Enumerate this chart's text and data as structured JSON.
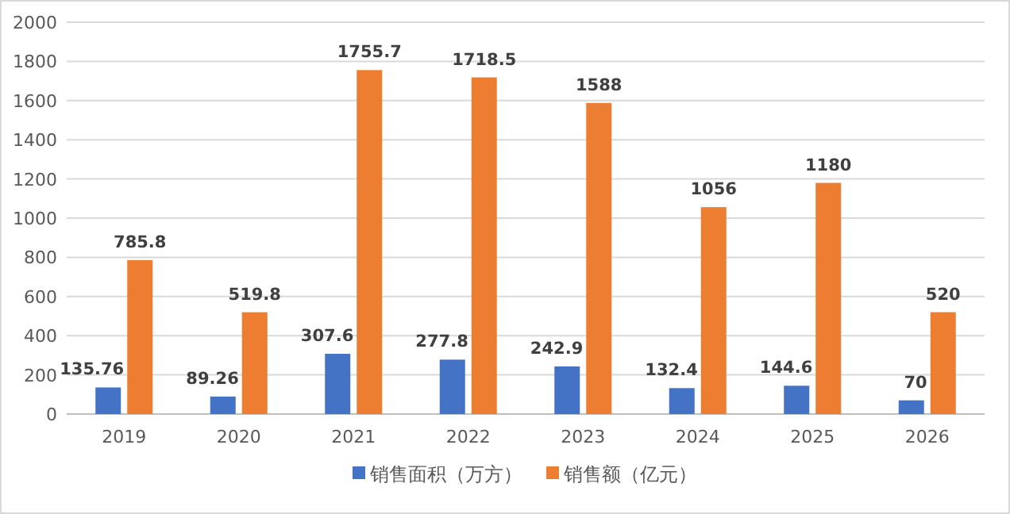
{
  "chart_data": {
    "type": "bar",
    "categories": [
      "2019",
      "2020",
      "2021",
      "2022",
      "2023",
      "2024",
      "2025",
      "2026"
    ],
    "series": [
      {
        "name": "销售面积（万方）",
        "color": "#4472c4",
        "values": [
          135.76,
          89.26,
          307.6,
          277.8,
          242.9,
          132.4,
          144.6,
          70
        ]
      },
      {
        "name": "销售额（亿元）",
        "color": "#ed7d31",
        "values": [
          785.8,
          519.8,
          1755.7,
          1718.5,
          1588,
          1056,
          1180,
          520
        ]
      }
    ],
    "ylim": [
      0,
      2000
    ],
    "yticks": [
      0,
      200,
      400,
      600,
      800,
      1000,
      1200,
      1400,
      1600,
      1800,
      2000
    ],
    "grid": "y",
    "legend": "bottom",
    "data_labels": true
  }
}
